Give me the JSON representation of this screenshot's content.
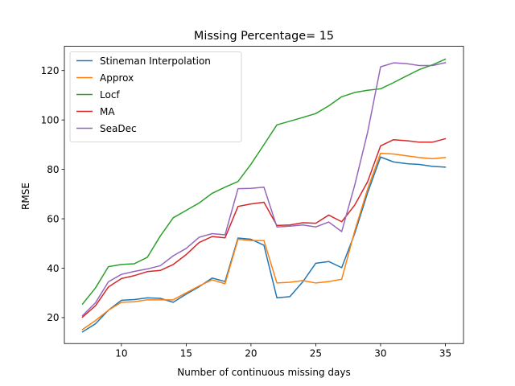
{
  "chart_data": {
    "type": "line",
    "title": "Missing Percentage= 15",
    "xlabel": "Number of continuous missing days",
    "ylabel": "RMSE",
    "xlim": [
      5.6,
      36.4
    ],
    "ylim": [
      9.5,
      129.8
    ],
    "xticks": [
      10,
      15,
      20,
      25,
      30,
      35
    ],
    "yticks": [
      20,
      40,
      60,
      80,
      100,
      120
    ],
    "grid": false,
    "legend_position": "top-left",
    "x": [
      7,
      8,
      9,
      10,
      11,
      12,
      13,
      14,
      15,
      16,
      17,
      18,
      19,
      20,
      21,
      22,
      23,
      24,
      25,
      26,
      27,
      28,
      29,
      30,
      31,
      32,
      33,
      34,
      35
    ],
    "series": [
      {
        "name": "Stineman Interpolation",
        "color": "#1f77b4",
        "values": [
          14.2,
          17.5,
          23.0,
          27.0,
          27.3,
          28.0,
          27.8,
          26.2,
          29.5,
          32.5,
          36.0,
          34.6,
          52.2,
          51.7,
          49.3,
          28.0,
          28.5,
          34.5,
          42.0,
          42.7,
          40.2,
          54.0,
          70.5,
          85.0,
          83.0,
          82.3,
          82.0,
          81.2,
          80.9
        ]
      },
      {
        "name": "Approx",
        "color": "#ff7f0e",
        "values": [
          15.2,
          18.8,
          23.0,
          26.2,
          26.4,
          27.2,
          27.2,
          27.2,
          30.0,
          32.8,
          35.3,
          33.7,
          51.7,
          51.2,
          51.2,
          34.0,
          34.3,
          35.0,
          34.0,
          34.6,
          35.5,
          55.0,
          72.0,
          86.5,
          86.2,
          85.5,
          84.8,
          84.3,
          84.8
        ]
      },
      {
        "name": "Locf",
        "color": "#2ca02c",
        "values": [
          25.5,
          32.0,
          40.6,
          41.5,
          41.8,
          44.4,
          53.0,
          60.4,
          63.4,
          66.4,
          70.3,
          72.8,
          75.1,
          82.1,
          90.0,
          98.0,
          99.5,
          101.0,
          102.6,
          105.7,
          109.4,
          111.1,
          112.0,
          112.6,
          115.1,
          117.8,
          120.4,
          122.3,
          124.6
        ]
      },
      {
        "name": "MA",
        "color": "#d62728",
        "values": [
          20.2,
          24.8,
          32.4,
          35.8,
          37.0,
          38.6,
          39.1,
          41.5,
          45.5,
          50.4,
          52.8,
          52.3,
          65.0,
          66.0,
          66.7,
          57.3,
          57.5,
          58.4,
          58.2,
          61.5,
          58.8,
          65.5,
          75.0,
          89.5,
          92.0,
          91.6,
          91.0,
          91.0,
          92.4
        ]
      },
      {
        "name": "SeaDec",
        "color": "#9467bd",
        "values": [
          20.8,
          26.0,
          34.5,
          37.5,
          38.7,
          39.7,
          41.0,
          45.0,
          48.0,
          52.5,
          54.0,
          53.5,
          72.2,
          72.3,
          72.8,
          56.7,
          57.0,
          57.5,
          56.7,
          58.7,
          54.8,
          73.5,
          95.0,
          121.5,
          123.1,
          122.8,
          122.0,
          122.0,
          123.2
        ]
      }
    ]
  }
}
